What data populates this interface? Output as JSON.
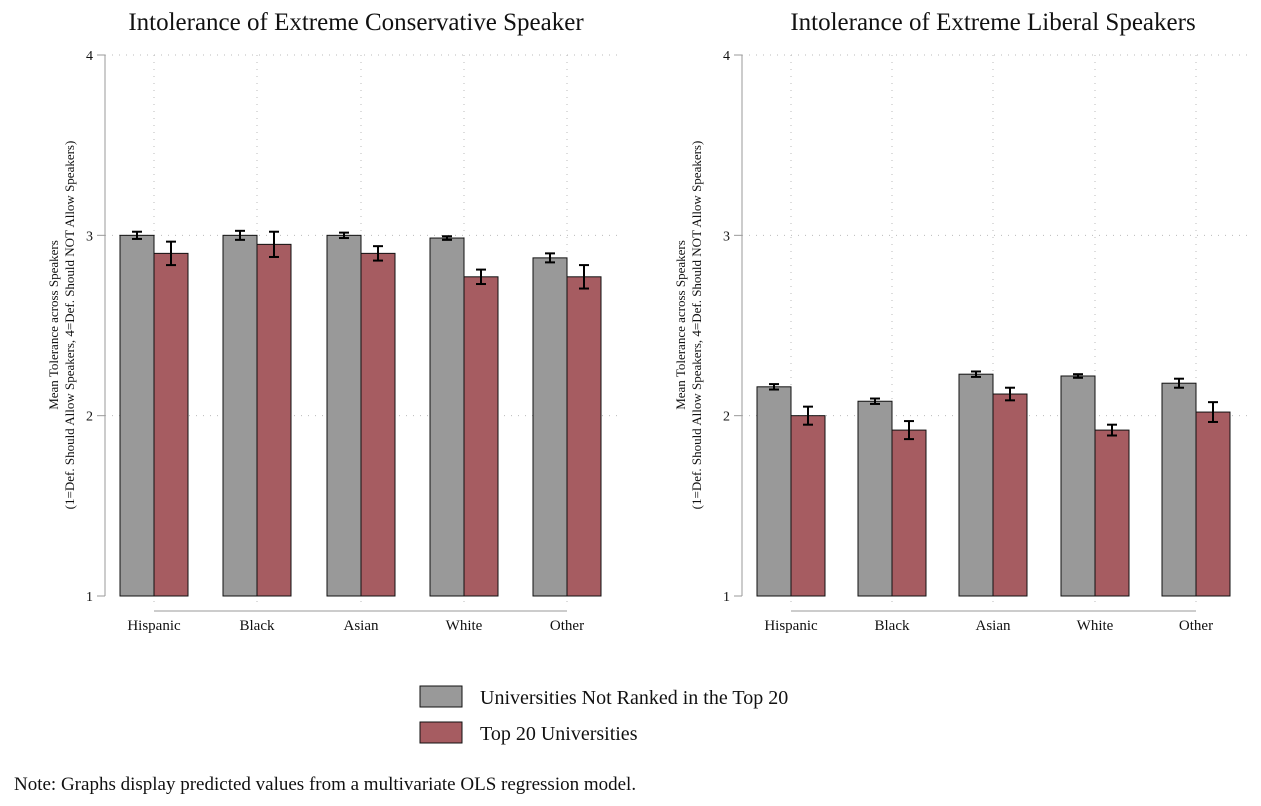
{
  "chart_data": [
    {
      "type": "bar",
      "title": "Intolerance of Extreme Conservative Speaker",
      "ylabel_line1": "Mean Tolerance across Speakers",
      "ylabel_line2": "(1=Def. Should Allow Speakers, 4=Def. Should NOT Allow Speakers)",
      "ylim": [
        1,
        4
      ],
      "yticks": [
        "1",
        "2",
        "3",
        "4"
      ],
      "categories": [
        "Hispanic",
        "Black",
        "Asian",
        "White",
        "Other"
      ],
      "series": [
        {
          "name": "Universities Not Ranked in the Top 20",
          "color": "#999999",
          "values": [
            3.0,
            3.0,
            3.0,
            2.985,
            2.875
          ],
          "ci": [
            0.02,
            0.025,
            0.015,
            0.01,
            0.025
          ]
        },
        {
          "name": "Top 20 Universities",
          "color": "#a65c61",
          "values": [
            2.9,
            2.95,
            2.9,
            2.77,
            2.77
          ],
          "ci": [
            0.065,
            0.07,
            0.04,
            0.04,
            0.065
          ]
        }
      ]
    },
    {
      "type": "bar",
      "title": "Intolerance of Extreme Liberal Speakers",
      "ylabel_line1": "Mean Tolerance across Speakers",
      "ylabel_line2": "(1=Def. Should Allow Speakers, 4=Def. Should NOT Allow Speakers)",
      "ylim": [
        1,
        4
      ],
      "yticks": [
        "1",
        "2",
        "3",
        "4"
      ],
      "categories": [
        "Hispanic",
        "Black",
        "Asian",
        "White",
        "Other"
      ],
      "series": [
        {
          "name": "Universities Not Ranked in the Top 20",
          "color": "#999999",
          "values": [
            2.16,
            2.08,
            2.23,
            2.22,
            2.18
          ],
          "ci": [
            0.015,
            0.015,
            0.015,
            0.01,
            0.025
          ]
        },
        {
          "name": "Top 20 Universities",
          "color": "#a65c61",
          "values": [
            2.0,
            1.92,
            2.12,
            1.92,
            2.02
          ],
          "ci": [
            0.05,
            0.05,
            0.035,
            0.03,
            0.055
          ]
        }
      ]
    }
  ],
  "legend": [
    {
      "label": "Universities Not Ranked in the Top 20",
      "color": "#999999"
    },
    {
      "label": "Top 20 Universities",
      "color": "#a65c61"
    }
  ],
  "note": "Note: Graphs display predicted values from a multivariate OLS regression model."
}
